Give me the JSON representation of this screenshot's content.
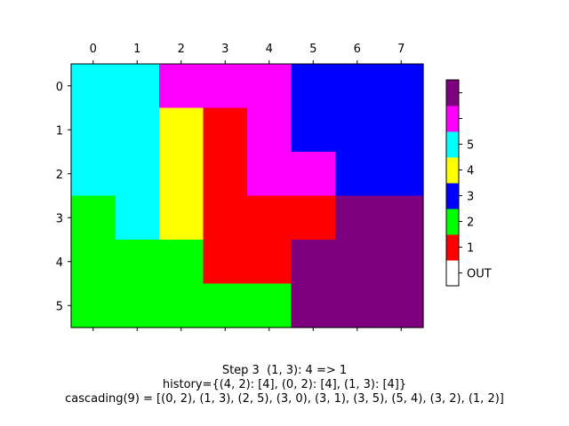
{
  "chart_data": [
    {
      "type": "heatmap",
      "x_ticks": [
        "0",
        "1",
        "2",
        "3",
        "4",
        "5",
        "6",
        "7"
      ],
      "y_ticks": [
        "0",
        "1",
        "2",
        "3",
        "4",
        "5"
      ],
      "x_axis_position": "top",
      "grid": false,
      "colors": {
        "1": "#ff0000",
        "2": "#00ff00",
        "3": "#0000ff",
        "4": "#ffff00",
        "5": "#00ffff",
        "6": "#ff00ff",
        "7": "#7f007f"
      },
      "grid_values": [
        [
          5,
          5,
          6,
          6,
          6,
          3,
          3,
          3
        ],
        [
          5,
          5,
          4,
          1,
          6,
          3,
          3,
          3
        ],
        [
          5,
          5,
          4,
          1,
          6,
          6,
          3,
          3
        ],
        [
          2,
          5,
          4,
          1,
          1,
          1,
          7,
          7
        ],
        [
          2,
          2,
          2,
          1,
          1,
          7,
          7,
          7
        ],
        [
          2,
          2,
          2,
          2,
          2,
          7,
          7,
          7
        ]
      ]
    },
    {
      "type": "colorbar",
      "legend_placement": "right",
      "segments_bottom_to_top": [
        {
          "color": "#ffffff",
          "label": "OUT"
        },
        {
          "color": "#ff0000",
          "label": "1"
        },
        {
          "color": "#00ff00",
          "label": "2"
        },
        {
          "color": "#0000ff",
          "label": "3"
        },
        {
          "color": "#ffff00",
          "label": "4"
        },
        {
          "color": "#00ffff",
          "label": "5"
        },
        {
          "color": "#ff00ff",
          "label": ""
        },
        {
          "color": "#7f007f",
          "label": ""
        }
      ]
    }
  ],
  "caption": {
    "line1": "Step 3  (1, 3): 4 => 1",
    "line2": "history={(4, 2): [4], (0, 2): [4], (1, 3): [4]}",
    "line3": "cascading(9) = [(0, 2), (1, 3), (2, 5), (3, 0), (3, 1), (3, 5), (5, 4), (3, 2), (1, 2)]"
  }
}
